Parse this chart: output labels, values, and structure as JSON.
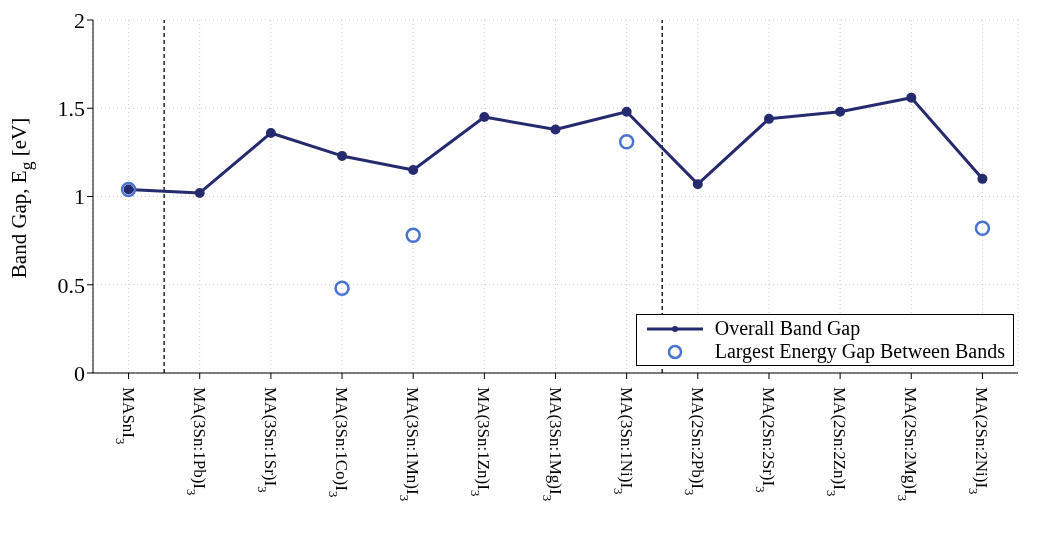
{
  "chart_data": {
    "type": "line",
    "ylabel": "Band Gap, E$_{g}$ [eV]",
    "categories": [
      "MASnI$_{3}$",
      "MA(3Sn:1Pb)I$_{3}$",
      "MA(3Sn:1Sr)I$_{3}$",
      "MA(3Sn:1Co)I$_{3}$",
      "MA(3Sn:1Mn)I$_{3}$",
      "MA(3Sn:1Zn)I$_{3}$",
      "MA(3Sn:1Mg)I$_{3}$",
      "MA(3Sn:1Ni)I$_{3}$",
      "MA(2Sn:2Pb)I$_{3}$",
      "MA(2Sn:2Sr)I$_{3}$",
      "MA(2Sn:2Zn)I$_{3}$",
      "MA(2Sn:2Mg)I$_{3}$",
      "MA(2Sn:2Ni)I$_{3}$"
    ],
    "series": [
      {
        "name": "Overall Band Gap",
        "color": "#262a6e",
        "marker": "circle",
        "values": [
          1.04,
          1.02,
          1.36,
          1.23,
          1.15,
          1.45,
          1.38,
          1.48,
          1.07,
          1.44,
          1.48,
          1.56,
          1.1
        ]
      },
      {
        "name": "Largest Energy Gap Between Bands",
        "type": "scatter",
        "color": "#4a72d0",
        "marker": "circle",
        "values": [
          1.04,
          null,
          null,
          0.48,
          0.78,
          null,
          null,
          1.31,
          null,
          null,
          null,
          null,
          0.82
        ]
      }
    ],
    "ylim": [
      0,
      2
    ],
    "yticks": [
      0,
      0.5,
      1,
      1.5,
      2
    ],
    "grid": true,
    "legend": "bottom right"
  }
}
